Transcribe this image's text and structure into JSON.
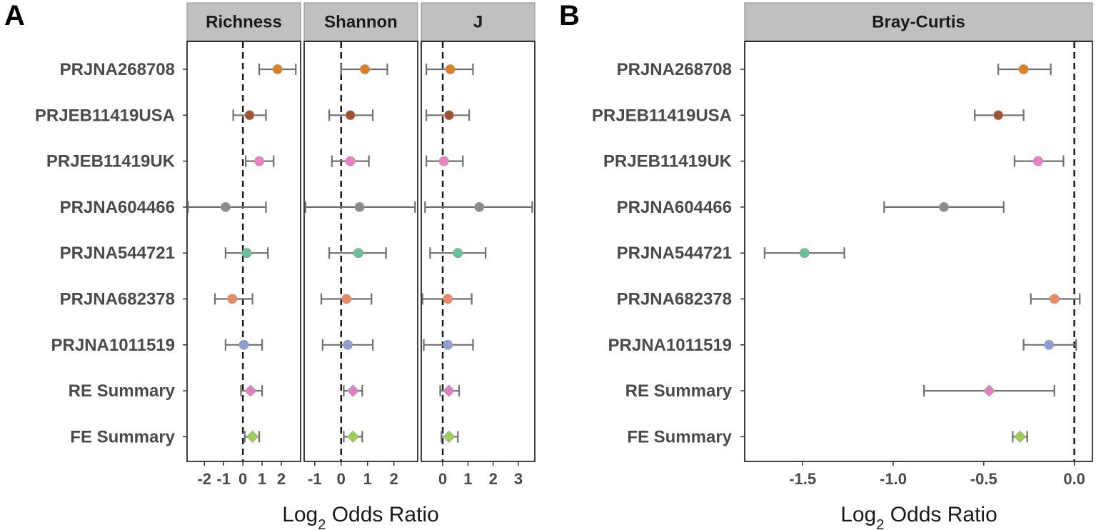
{
  "xlabel_base": "Log",
  "xlabel_sub": "2",
  "xlabel_rest": " Odds Ratio",
  "row_labels": [
    "PRJNA268708",
    "PRJEB11419USA",
    "PRJEB11419UK",
    "PRJNA604466",
    "PRJNA544721",
    "PRJNA682378",
    "PRJNA1011519",
    "RE Summary",
    "FE Summary"
  ],
  "row_colors": [
    "#e67e14",
    "#a0522d",
    "#f07fc6",
    "#8c8c8c",
    "#5fc69a",
    "#f08a5d",
    "#8c9fd6",
    "#e07fc6",
    "#9ad44a"
  ],
  "row_shapes": [
    "circle",
    "circle",
    "circle",
    "circle",
    "circle",
    "circle",
    "circle",
    "diamond",
    "diamond"
  ],
  "chart_data": [
    {
      "panel": "A",
      "type": "scatter",
      "title": "Richness",
      "xlim": [
        -2.9,
        3.0
      ],
      "ticks": [
        -2,
        -1,
        0,
        1,
        2
      ],
      "tick_labels": [
        "-2",
        "-1",
        "0",
        "1",
        "2"
      ],
      "ref_line": 0,
      "points": [
        {
          "label": "PRJNA268708",
          "est": 1.8,
          "lo": 0.85,
          "hi": 2.75
        },
        {
          "label": "PRJEB11419USA",
          "est": 0.35,
          "lo": -0.5,
          "hi": 1.2
        },
        {
          "label": "PRJEB11419UK",
          "est": 0.85,
          "lo": 0.15,
          "hi": 1.6
        },
        {
          "label": "PRJNA604466",
          "est": -0.9,
          "lo": -2.85,
          "hi": 1.2
        },
        {
          "label": "PRJNA544721",
          "est": 0.2,
          "lo": -0.9,
          "hi": 1.3
        },
        {
          "label": "PRJNA682378",
          "est": -0.55,
          "lo": -1.45,
          "hi": 0.5
        },
        {
          "label": "PRJNA1011519",
          "est": 0.05,
          "lo": -0.9,
          "hi": 1.0
        },
        {
          "label": "RE Summary",
          "est": 0.4,
          "lo": -0.1,
          "hi": 1.0
        },
        {
          "label": "FE Summary",
          "est": 0.5,
          "lo": 0.1,
          "hi": 0.85
        }
      ]
    },
    {
      "panel": "A",
      "type": "scatter",
      "title": "Shannon",
      "xlim": [
        -1.4,
        2.9
      ],
      "ticks": [
        -1,
        0,
        1,
        2
      ],
      "tick_labels": [
        "-1",
        "0",
        "1",
        "2"
      ],
      "ref_line": 0,
      "points": [
        {
          "label": "PRJNA268708",
          "est": 0.9,
          "lo": 0.0,
          "hi": 1.75
        },
        {
          "label": "PRJEB11419USA",
          "est": 0.35,
          "lo": -0.45,
          "hi": 1.2
        },
        {
          "label": "PRJEB11419UK",
          "est": 0.35,
          "lo": -0.35,
          "hi": 1.05
        },
        {
          "label": "PRJNA604466",
          "est": 0.7,
          "lo": -1.35,
          "hi": 2.8
        },
        {
          "label": "PRJNA544721",
          "est": 0.65,
          "lo": -0.45,
          "hi": 1.7
        },
        {
          "label": "PRJNA682378",
          "est": 0.2,
          "lo": -0.75,
          "hi": 1.15
        },
        {
          "label": "PRJNA1011519",
          "est": 0.25,
          "lo": -0.7,
          "hi": 1.2
        },
        {
          "label": "RE Summary",
          "est": 0.45,
          "lo": 0.1,
          "hi": 0.8
        },
        {
          "label": "FE Summary",
          "est": 0.45,
          "lo": 0.1,
          "hi": 0.8
        }
      ]
    },
    {
      "panel": "A",
      "type": "scatter",
      "title": "J",
      "xlim": [
        -0.85,
        3.65
      ],
      "ticks": [
        0,
        1,
        2,
        3
      ],
      "tick_labels": [
        "0",
        "1",
        "2",
        "3"
      ],
      "ref_line": 0,
      "points": [
        {
          "label": "PRJNA268708",
          "est": 0.3,
          "lo": -0.65,
          "hi": 1.2
        },
        {
          "label": "PRJEB11419USA",
          "est": 0.25,
          "lo": -0.65,
          "hi": 1.05
        },
        {
          "label": "PRJEB11419UK",
          "est": 0.05,
          "lo": -0.65,
          "hi": 0.8
        },
        {
          "label": "PRJNA604466",
          "est": 1.45,
          "lo": -0.7,
          "hi": 3.55
        },
        {
          "label": "PRJNA544721",
          "est": 0.6,
          "lo": -0.5,
          "hi": 1.7
        },
        {
          "label": "PRJNA682378",
          "est": 0.2,
          "lo": -0.8,
          "hi": 1.15
        },
        {
          "label": "PRJNA1011519",
          "est": 0.2,
          "lo": -0.75,
          "hi": 1.2
        },
        {
          "label": "RE Summary",
          "est": 0.25,
          "lo": -0.1,
          "hi": 0.65
        },
        {
          "label": "FE Summary",
          "est": 0.25,
          "lo": -0.05,
          "hi": 0.6
        }
      ]
    },
    {
      "panel": "B",
      "type": "scatter",
      "title": "Bray-Curtis",
      "xlim": [
        -1.82,
        0.1
      ],
      "ticks": [
        -1.5,
        -1.0,
        -0.5,
        0.0
      ],
      "tick_labels": [
        "-1.5",
        "-1.0",
        "-0.5",
        "0.0"
      ],
      "ref_line": 0,
      "points": [
        {
          "label": "PRJNA268708",
          "est": -0.28,
          "lo": -0.42,
          "hi": -0.13
        },
        {
          "label": "PRJEB11419USA",
          "est": -0.42,
          "lo": -0.55,
          "hi": -0.28
        },
        {
          "label": "PRJEB11419UK",
          "est": -0.2,
          "lo": -0.33,
          "hi": -0.06
        },
        {
          "label": "PRJNA604466",
          "est": -0.72,
          "lo": -1.05,
          "hi": -0.39
        },
        {
          "label": "PRJNA544721",
          "est": -1.49,
          "lo": -1.71,
          "hi": -1.27
        },
        {
          "label": "PRJNA682378",
          "est": -0.11,
          "lo": -0.24,
          "hi": 0.03
        },
        {
          "label": "PRJNA1011519",
          "est": -0.14,
          "lo": -0.28,
          "hi": 0.01
        },
        {
          "label": "RE Summary",
          "est": -0.47,
          "lo": -0.83,
          "hi": -0.11
        },
        {
          "label": "FE Summary",
          "est": -0.3,
          "lo": -0.34,
          "hi": -0.26
        }
      ]
    }
  ]
}
